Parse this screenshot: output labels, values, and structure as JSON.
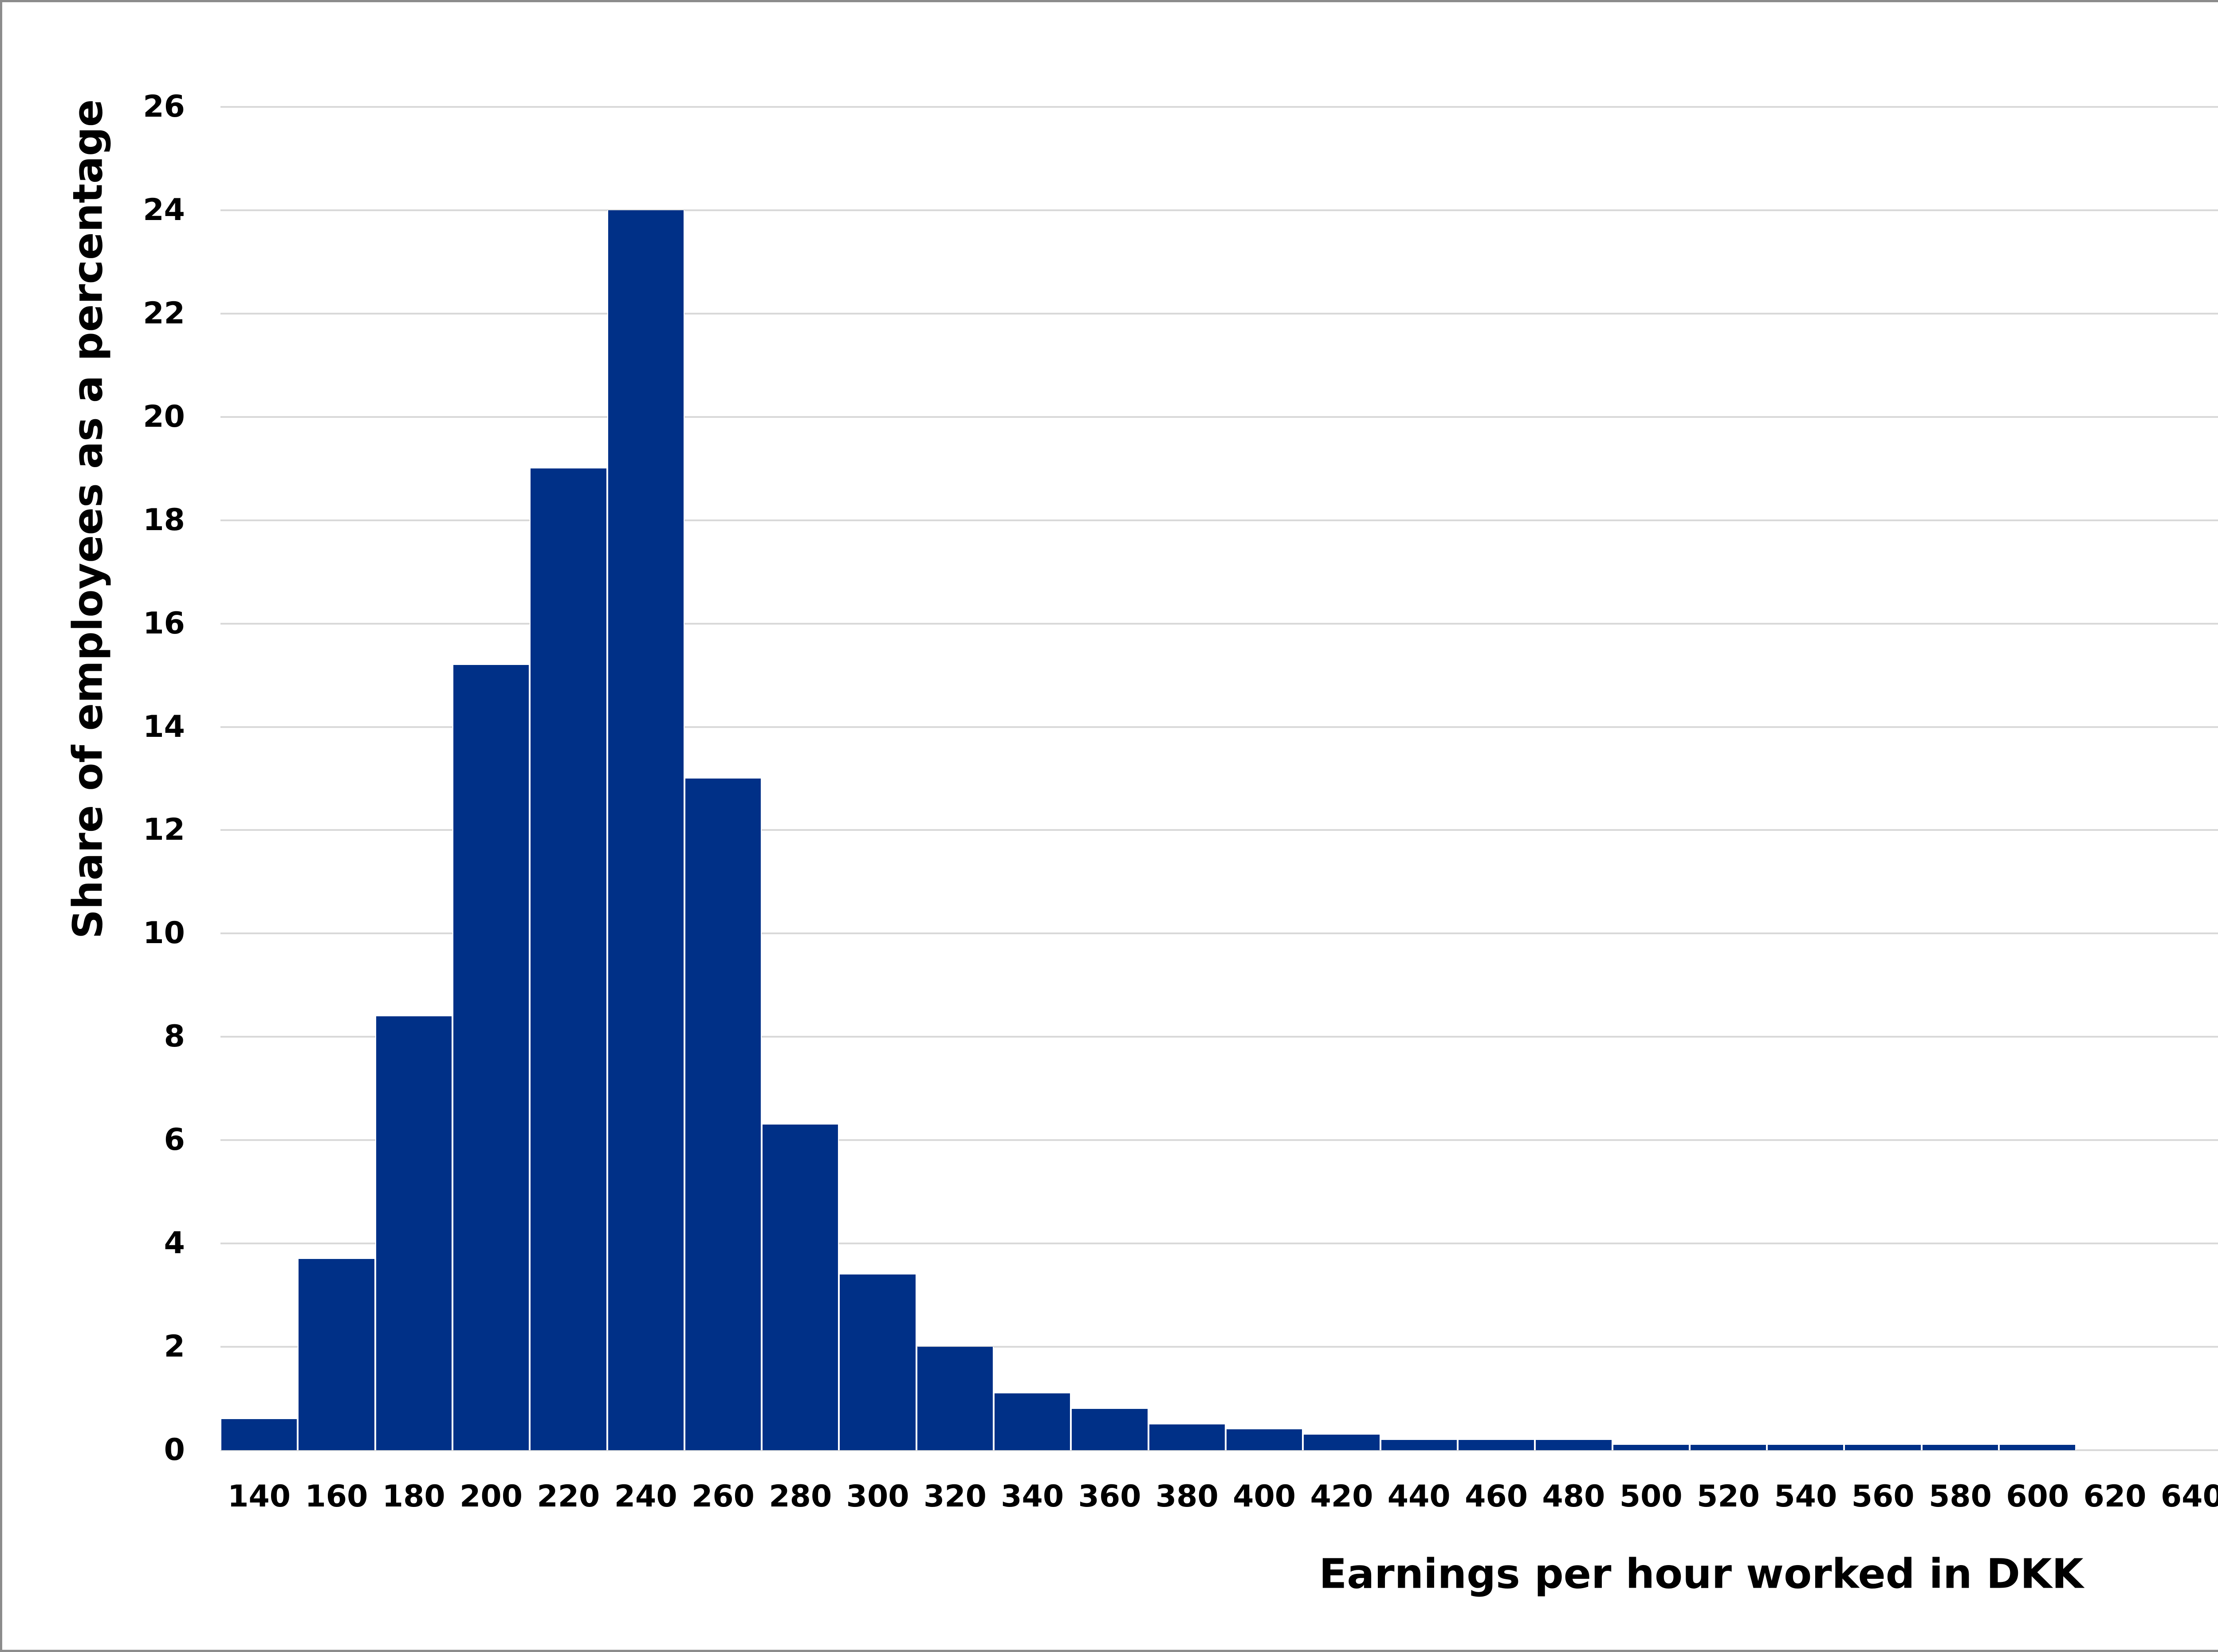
{
  "chart_data": {
    "type": "bar",
    "title": "",
    "xlabel": "Earnings per hour worked in DKK",
    "ylabel": "Share of employees as a percentage",
    "categories": [
      "140",
      "160",
      "180",
      "200",
      "220",
      "240",
      "260",
      "280",
      "300",
      "320",
      "340",
      "360",
      "380",
      "400",
      "420",
      "440",
      "460",
      "480",
      "500",
      "520",
      "540",
      "560",
      "580",
      "600",
      "620",
      "640"
    ],
    "values": [
      0.6,
      3.7,
      8.4,
      15.2,
      19.0,
      24.0,
      13.0,
      6.3,
      3.4,
      2.0,
      1.1,
      0.8,
      0.5,
      0.4,
      0.3,
      0.2,
      0.2,
      0.2,
      0.1,
      0.1,
      0.1,
      0.1,
      0.1,
      0.1,
      0.0,
      0.0
    ],
    "ylim": [
      0,
      26
    ],
    "yticks": [
      "0",
      "2",
      "4",
      "6",
      "8",
      "10",
      "12",
      "14",
      "16",
      "18",
      "20",
      "22",
      "24",
      "26"
    ],
    "grid": true,
    "legend": null,
    "bar_color": "#003087",
    "grid_color": "#d9d9d9"
  }
}
